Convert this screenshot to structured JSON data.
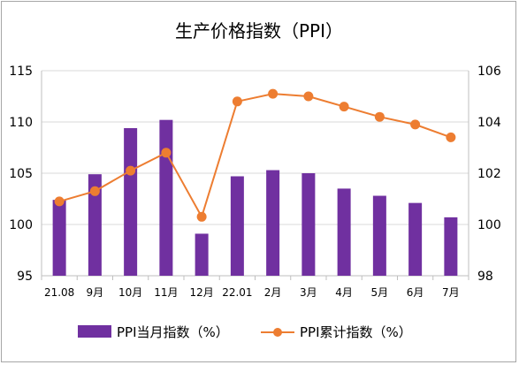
{
  "chart_data": {
    "type": "bar",
    "title": "生产价格指数（PPI）",
    "categories": [
      "21.08",
      "9月",
      "10月",
      "11月",
      "12月",
      "22.01",
      "2月",
      "3月",
      "4月",
      "5月",
      "6月",
      "7月"
    ],
    "series": [
      {
        "name": "PPI当月指数（%）",
        "type": "bar",
        "axis": "left",
        "color": "#7030a0",
        "values": [
          102.4,
          104.9,
          109.4,
          110.2,
          99.1,
          104.7,
          105.3,
          105.0,
          103.5,
          102.8,
          102.1,
          100.7
        ]
      },
      {
        "name": "PPI累计指数（%）",
        "type": "line",
        "axis": "right",
        "color": "#ed7d31",
        "values": [
          100.9,
          101.3,
          102.1,
          102.8,
          100.3,
          104.8,
          105.1,
          105.0,
          104.6,
          104.2,
          103.9,
          103.4
        ]
      }
    ],
    "y_left": {
      "min": 95,
      "max": 115,
      "ticks": [
        95,
        100,
        105,
        110,
        115
      ]
    },
    "y_right": {
      "min": 98,
      "max": 106,
      "ticks": [
        98,
        100,
        102,
        104,
        106
      ]
    },
    "grid": true,
    "legend": "bottom"
  }
}
